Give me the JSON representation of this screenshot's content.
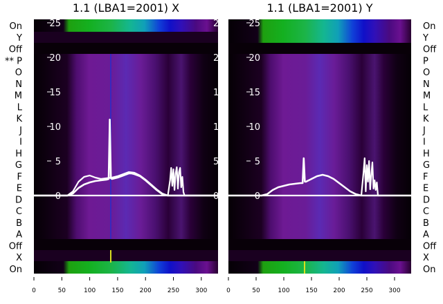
{
  "chart_data": [
    {
      "type": "heatmap",
      "title": "1.1 (LBA1=2001) X",
      "row_labels_left": [
        "On",
        "Y",
        "Off",
        "** P",
        "O",
        "N",
        "M",
        "L",
        "K",
        "J",
        "I",
        "H",
        "G",
        "F",
        "E",
        "D",
        "C",
        "B",
        "A",
        "Off",
        "X",
        "On"
      ],
      "x_ticks": [
        0,
        50,
        100,
        150,
        200,
        250,
        300
      ],
      "xlim": [
        0,
        330
      ],
      "overlay": {
        "type": "line",
        "yticks": [
          0,
          5,
          10,
          15,
          20,
          25
        ],
        "ylim": [
          -11.3,
          25.5
        ],
        "series": [
          {
            "x": [
              0,
              60,
              70,
              80,
              90,
              100,
              110,
              120,
              130,
              134,
              136,
              138,
              140,
              150,
              160,
              170,
              175,
              180,
              190,
              200,
              210,
              220,
              230,
              240,
              250,
              260,
              270,
              280,
              290,
              300,
              330
            ],
            "y": [
              0,
              0,
              0.3,
              1.1,
              1.6,
              1.9,
              2.1,
              2.2,
              2.3,
              2.4,
              11,
              2.5,
              2.4,
              2.6,
              2.9,
              3.2,
              3.2,
              3.1,
              2.8,
              2.2,
              1.5,
              0.8,
              0.2,
              0,
              0,
              0,
              0,
              0,
              0,
              0,
              0
            ]
          },
          {
            "x": [
              0,
              60,
              70,
              80,
              90,
              100,
              110,
              120,
              130,
              140,
              150,
              160,
              170,
              180,
              190,
              200,
              210,
              220,
              230,
              240,
              330
            ],
            "y": [
              0,
              0,
              0.6,
              2.0,
              2.7,
              2.9,
              2.6,
              2.4,
              2.5,
              2.6,
              2.8,
              3.1,
              3.4,
              3.3,
              2.9,
              2.3,
              1.6,
              0.9,
              0.3,
              0,
              0
            ]
          },
          {
            "x": [
              0,
              240,
              244,
              246,
              248,
              250,
              252,
              254,
              256,
              258,
              260,
              262,
              264,
              266,
              268,
              270,
              330
            ],
            "y": [
              0,
              0,
              2.2,
              4.0,
              1.4,
              3.8,
              0.8,
              3.2,
              4.1,
              1.0,
              3.4,
              4.0,
              1.2,
              2.7,
              0.5,
              0,
              0
            ]
          }
        ]
      }
    },
    {
      "type": "heatmap",
      "title": "1.1 (LBA1=2001) Y",
      "row_labels_right": [
        "On",
        "Y",
        "Off",
        "P",
        "O",
        "N",
        "M",
        "L",
        "K",
        "J",
        "I",
        "H",
        "G",
        "F",
        "E",
        "D",
        "C",
        "B",
        "A",
        "Off",
        "X",
        "On"
      ],
      "x_ticks": [
        0,
        50,
        100,
        150,
        200,
        250,
        300
      ],
      "xlim": [
        0,
        330
      ],
      "overlay": {
        "type": "line",
        "yticks": [
          0,
          5,
          10,
          15,
          20,
          25
        ],
        "ylim": [
          -11.3,
          25.5
        ],
        "series": [
          {
            "x": [
              0,
              60,
              70,
              80,
              90,
              100,
              110,
              120,
              130,
              134,
              136,
              138,
              140,
              150,
              160,
              170,
              180,
              190,
              200,
              210,
              220,
              230,
              240,
              330
            ],
            "y": [
              0,
              0,
              0.2,
              0.8,
              1.2,
              1.4,
              1.6,
              1.7,
              1.8,
              1.8,
              5.4,
              2.0,
              2.0,
              2.4,
              2.8,
              3.0,
              2.8,
              2.4,
              1.8,
              1.2,
              0.6,
              0.2,
              0,
              0
            ]
          },
          {
            "x": [
              0,
              240,
              244,
              246,
              248,
              250,
              252,
              254,
              256,
              258,
              260,
              262,
              264,
              266,
              268,
              270,
              330
            ],
            "y": [
              0,
              0,
              3.4,
              5.4,
              0.6,
              4.4,
              2.0,
              5.0,
              0.9,
              3.0,
              4.8,
              1.0,
              2.2,
              0.8,
              1.9,
              0,
              0
            ]
          }
        ]
      }
    }
  ]
}
